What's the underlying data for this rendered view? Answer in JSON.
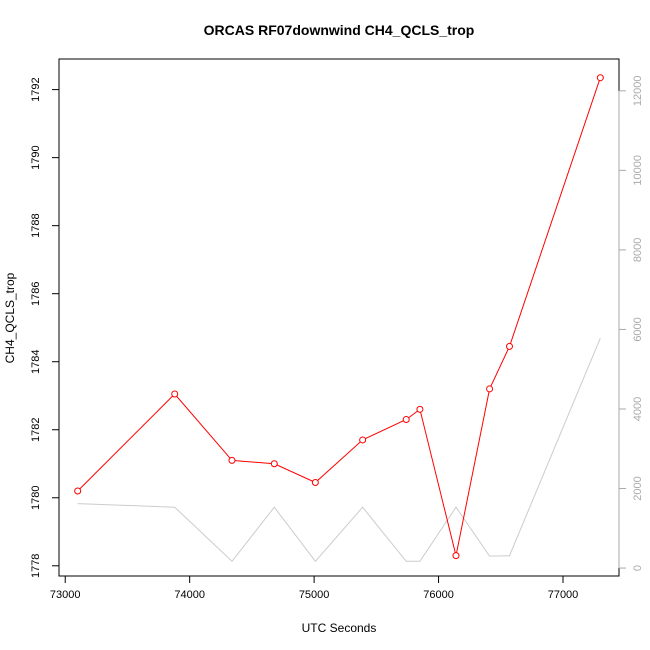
{
  "chart_data": {
    "type": "line",
    "title": "ORCAS RF07downwind CH4_QCLS_trop",
    "xlabel": "UTC Seconds",
    "ylabel": "CH4_QCLS_trop",
    "xlim": [
      72950,
      77450
    ],
    "ylim": [
      1777.7,
      1792.9
    ],
    "y2lim": [
      -200,
      12800
    ],
    "x_ticks": [
      73000,
      74000,
      75000,
      76000,
      77000
    ],
    "y_ticks": [
      1778,
      1780,
      1782,
      1784,
      1786,
      1788,
      1790,
      1792
    ],
    "y2_ticks": [
      0,
      2000,
      4000,
      6000,
      8000,
      10000,
      12000
    ],
    "grid": false,
    "series": [
      {
        "axis": "left",
        "color": "#ff0000",
        "marker": "open-circle",
        "x": [
          73100,
          73880,
          74340,
          74680,
          75010,
          75390,
          75740,
          75850,
          76140,
          76410,
          76570,
          77300
        ],
        "values": [
          1780.2,
          1783.05,
          1781.1,
          1781.0,
          1780.45,
          1781.7,
          1782.3,
          1782.6,
          1778.3,
          1783.2,
          1784.45,
          1792.35
        ]
      },
      {
        "axis": "right",
        "color": "#cccccc",
        "marker": "none",
        "x": [
          73100,
          73880,
          74340,
          74680,
          75010,
          75390,
          75740,
          75850,
          76140,
          76410,
          76570,
          77300
        ],
        "values": [
          1620,
          1530,
          170,
          1530,
          170,
          1530,
          170,
          170,
          1530,
          300,
          310,
          5780
        ]
      }
    ]
  }
}
